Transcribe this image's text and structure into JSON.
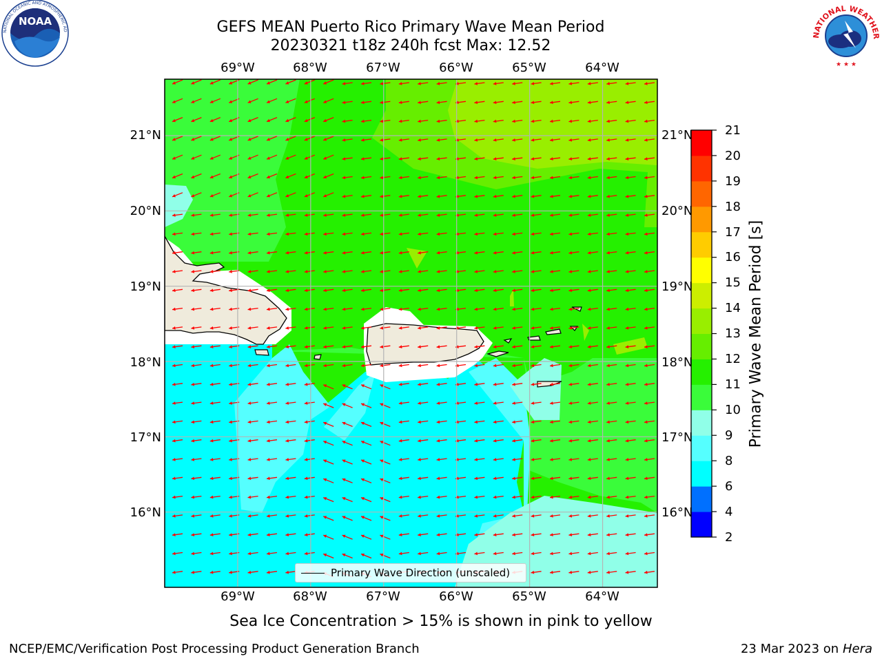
{
  "title": {
    "line1": "GEFS MEAN Puerto Rico Primary Wave Mean Period",
    "line2": "20230321 t18z 240h fcst   Max: 12.52"
  },
  "map": {
    "lon_ticks": [
      "69°W",
      "68°W",
      "67°W",
      "66°W",
      "65°W",
      "64°W"
    ],
    "lat_ticks": [
      "21°N",
      "20°N",
      "19°N",
      "18°N",
      "17°N",
      "16°N"
    ],
    "extent": {
      "lon_min": -70.0,
      "lon_max": -63.25,
      "lat_min": 15.0,
      "lat_max": 21.75
    },
    "land_color": "#efebdc",
    "wave_arrow_color": "#ff0000",
    "regions": [
      "Puerto Rico",
      "Hispaniola",
      "Virgin Islands"
    ]
  },
  "colorbar": {
    "label": "Primary Wave Mean Period [s]",
    "ticks": [
      "21",
      "20",
      "19",
      "18",
      "17",
      "16",
      "15",
      "14",
      "13",
      "12",
      "11",
      "10",
      "9",
      "8",
      "6",
      "4",
      "2"
    ],
    "levels": [
      2,
      4,
      6,
      8,
      9,
      10,
      11,
      12,
      13,
      14,
      15,
      16,
      17,
      18,
      19,
      20,
      21
    ],
    "colors": [
      "#0000ff",
      "#0070ff",
      "#00ffff",
      "#55ffff",
      "#90ffe8",
      "#3afc3a",
      "#25f000",
      "#66ee00",
      "#99ee00",
      "#ccee00",
      "#ffff00",
      "#ffcc00",
      "#ff9900",
      "#ff6600",
      "#ff3300",
      "#ff0000"
    ]
  },
  "legend": {
    "label": "Primary Wave Direction (unscaled)"
  },
  "note": "Sea Ice Concentration > 15% is shown in pink to yellow",
  "footer": {
    "left": "NCEP/EMC/Verification Post Processing Product Generation Branch",
    "date": "23 Mar 2023 on",
    "host": "Hera"
  },
  "logos": {
    "left": {
      "name": "noaa-logo",
      "text": "NOAA"
    },
    "right": {
      "name": "nws-logo",
      "text": "NATIONAL WEATHER SERVICE"
    }
  }
}
